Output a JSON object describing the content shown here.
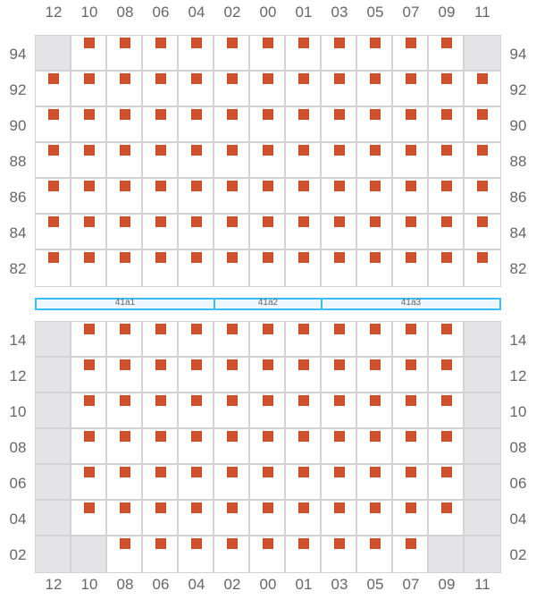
{
  "columns": [
    "12",
    "10",
    "08",
    "06",
    "04",
    "02",
    "00",
    "01",
    "03",
    "05",
    "07",
    "09",
    "11"
  ],
  "top_block": {
    "rows": [
      {
        "label": "94",
        "wells": "0111111111110"
      },
      {
        "label": "92",
        "wells": "1111111111111"
      },
      {
        "label": "90",
        "wells": "1111111111111"
      },
      {
        "label": "88",
        "wells": "1111111111111"
      },
      {
        "label": "86",
        "wells": "1111111111111"
      },
      {
        "label": "84",
        "wells": "1111111111111"
      },
      {
        "label": "82",
        "wells": "1111111111111"
      }
    ]
  },
  "bands": [
    {
      "label": "41a1",
      "start_col": 0,
      "span": 5
    },
    {
      "label": "41a2",
      "start_col": 5,
      "span": 3
    },
    {
      "label": "41a3",
      "start_col": 8,
      "span": 5
    }
  ],
  "bottom_block": {
    "rows": [
      {
        "label": "14",
        "wells": "0111111111110"
      },
      {
        "label": "12",
        "wells": "0111111111110"
      },
      {
        "label": "10",
        "wells": "0111111111110"
      },
      {
        "label": "08",
        "wells": "0111111111110"
      },
      {
        "label": "06",
        "wells": "0111111111110"
      },
      {
        "label": "04",
        "wells": "0111111111110"
      },
      {
        "label": "02",
        "wells": "0011111111100"
      }
    ]
  },
  "colors": {
    "filled": "#cf5230",
    "empty_cell": "#e4e4e6",
    "border": "#d3d3d6",
    "band_border": "#3bbcf0"
  }
}
